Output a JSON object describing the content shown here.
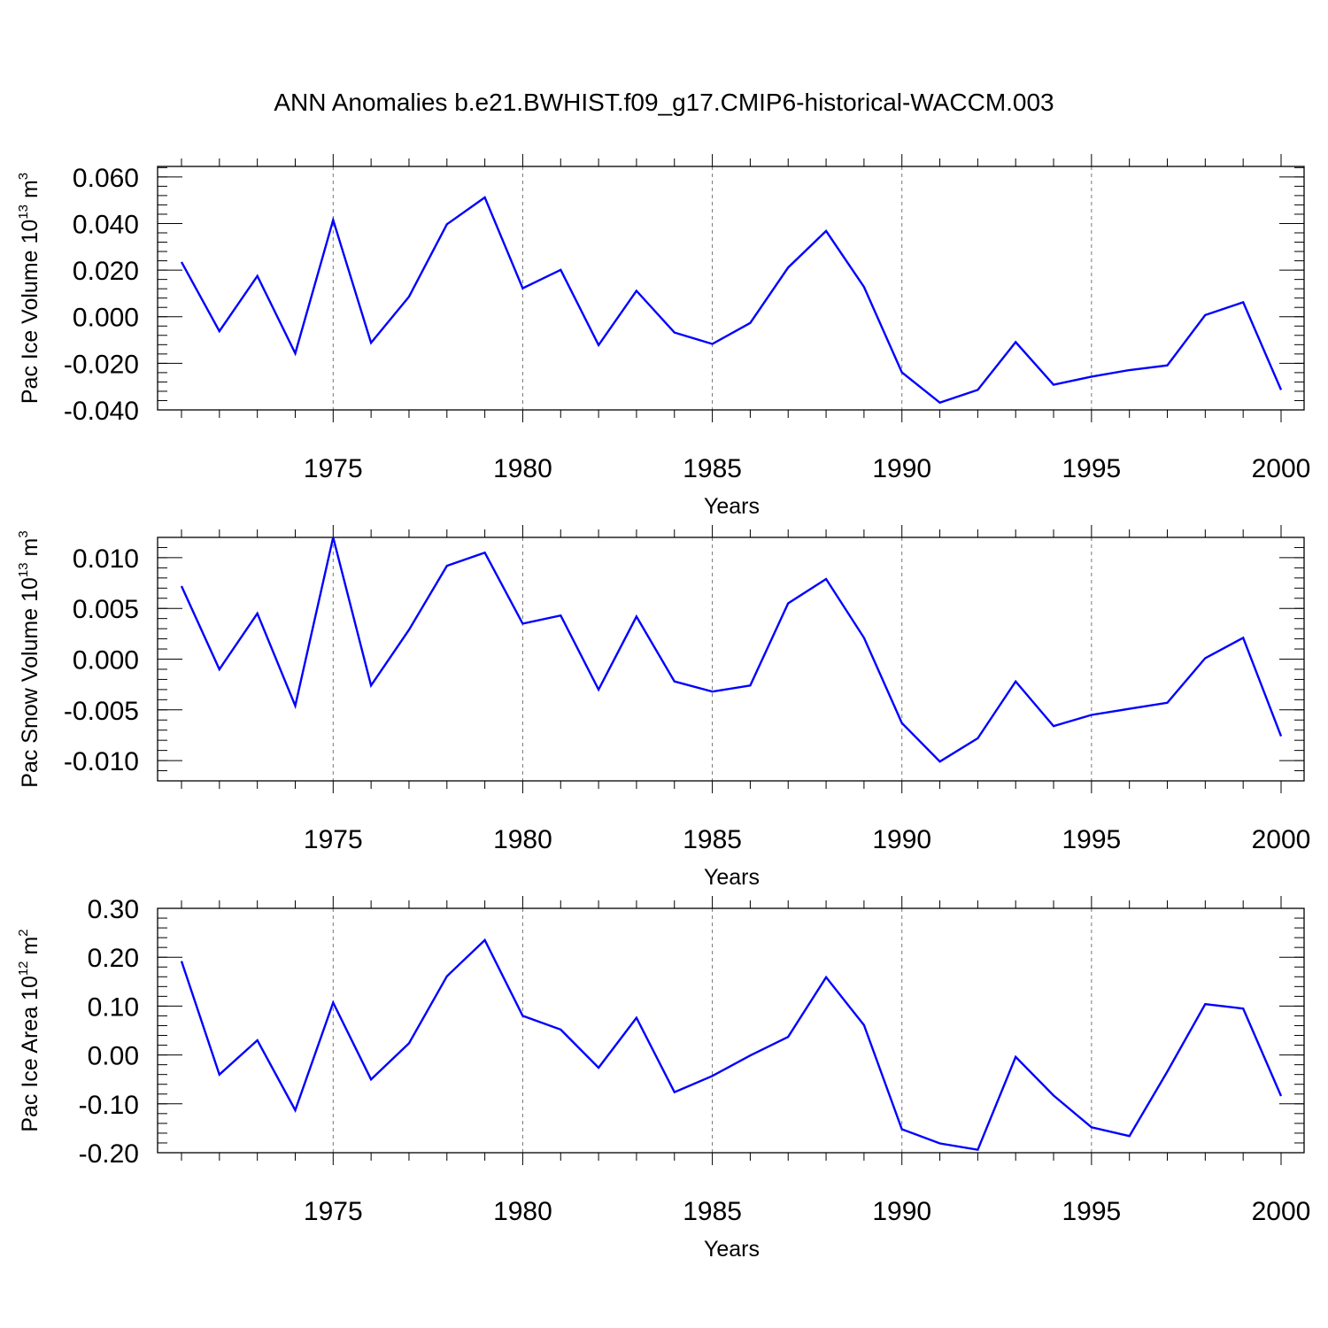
{
  "title": "ANN Anomalies b.e21.BWHIST.f09_g17.CMIP6-historical-WACCM.003",
  "line_color": "#0000ff",
  "chart_data": [
    {
      "type": "line",
      "title": "",
      "xlabel": "Years",
      "ylabel": "Pac Ice Volume 10",
      "ylabel_exp": "13",
      "ylabel_unit": "m",
      "ylabel_unit_exp": "3",
      "xlim": [
        1971,
        2000
      ],
      "ylim": [
        -0.04,
        0.0645
      ],
      "yticks": [
        {
          "value": 0.06,
          "label": "0.060"
        },
        {
          "value": 0.04,
          "label": "0.040"
        },
        {
          "value": 0.02,
          "label": "0.020"
        },
        {
          "value": 0.0,
          "label": "0.000"
        },
        {
          "value": -0.02,
          "label": "-0.020"
        },
        {
          "value": -0.04,
          "label": "-0.040"
        }
      ],
      "xticks": [
        {
          "value": 1975,
          "label": "1975"
        },
        {
          "value": 1980,
          "label": "1980"
        },
        {
          "value": 1985,
          "label": "1985"
        },
        {
          "value": 1990,
          "label": "1990"
        },
        {
          "value": 1995,
          "label": "1995"
        },
        {
          "value": 2000,
          "label": "2000"
        }
      ],
      "grid": "dashed vertical lines at major x ticks",
      "series": [
        {
          "x": [
            1971,
            1972,
            1973,
            1974,
            1975,
            1976,
            1977,
            1978,
            1979,
            1980,
            1981,
            1982,
            1983,
            1984,
            1985,
            1986,
            1987,
            1988,
            1989,
            1990,
            1991,
            1992,
            1993,
            1994,
            1995,
            1996,
            1997,
            1998,
            1999,
            2000
          ],
          "values": [
            0.0235,
            -0.0062,
            0.0175,
            -0.0157,
            0.0415,
            -0.0112,
            0.0086,
            0.0397,
            0.0512,
            0.0122,
            0.0201,
            -0.0122,
            0.0111,
            -0.0068,
            -0.0117,
            -0.0027,
            0.0211,
            0.0368,
            0.0128,
            -0.0239,
            -0.0369,
            -0.0314,
            -0.0109,
            -0.0292,
            -0.0257,
            -0.0229,
            -0.0209,
            0.0007,
            0.0062,
            -0.0314
          ]
        }
      ]
    },
    {
      "type": "line",
      "title": "",
      "xlabel": "Years",
      "ylabel": "Pac Snow Volume 10",
      "ylabel_exp": "13",
      "ylabel_unit": "m",
      "ylabel_unit_exp": "3",
      "xlim": [
        1971,
        2000
      ],
      "ylim": [
        -0.012,
        0.012
      ],
      "yticks": [
        {
          "value": 0.01,
          "label": "0.010"
        },
        {
          "value": 0.005,
          "label": "0.005"
        },
        {
          "value": 0.0,
          "label": "0.000"
        },
        {
          "value": -0.005,
          "label": "-0.005"
        },
        {
          "value": -0.01,
          "label": "-0.010"
        }
      ],
      "xticks": [
        {
          "value": 1975,
          "label": "1975"
        },
        {
          "value": 1980,
          "label": "1980"
        },
        {
          "value": 1985,
          "label": "1985"
        },
        {
          "value": 1990,
          "label": "1990"
        },
        {
          "value": 1995,
          "label": "1995"
        },
        {
          "value": 2000,
          "label": "2000"
        }
      ],
      "grid": "dashed vertical lines at major x ticks",
      "series": [
        {
          "x": [
            1971,
            1972,
            1973,
            1974,
            1975,
            1976,
            1977,
            1978,
            1979,
            1980,
            1981,
            1982,
            1983,
            1984,
            1985,
            1986,
            1987,
            1988,
            1989,
            1990,
            1991,
            1992,
            1993,
            1994,
            1995,
            1996,
            1997,
            1998,
            1999,
            2000
          ],
          "values": [
            0.0072,
            -0.001,
            0.0045,
            -0.0046,
            0.012,
            -0.0026,
            0.0029,
            0.0092,
            0.0105,
            0.0035,
            0.0043,
            -0.003,
            0.0042,
            -0.0022,
            -0.0032,
            -0.0026,
            0.0055,
            0.0079,
            0.0021,
            -0.0063,
            -0.0101,
            -0.0078,
            -0.0022,
            -0.0066,
            -0.0055,
            -0.0049,
            -0.0043,
            0.0001,
            0.0021,
            -0.0076
          ]
        }
      ]
    },
    {
      "type": "line",
      "title": "",
      "xlabel": "Years",
      "ylabel": "Pac Ice Area 10",
      "ylabel_exp": "12",
      "ylabel_unit": "m",
      "ylabel_unit_exp": "2",
      "xlim": [
        1971,
        2000
      ],
      "ylim": [
        -0.2,
        0.3
      ],
      "yticks": [
        {
          "value": 0.3,
          "label": "0.30"
        },
        {
          "value": 0.2,
          "label": "0.20"
        },
        {
          "value": 0.1,
          "label": "0.10"
        },
        {
          "value": 0.0,
          "label": "0.00"
        },
        {
          "value": -0.1,
          "label": "-0.10"
        },
        {
          "value": -0.2,
          "label": "-0.20"
        }
      ],
      "xticks": [
        {
          "value": 1975,
          "label": "1975"
        },
        {
          "value": 1980,
          "label": "1980"
        },
        {
          "value": 1985,
          "label": "1985"
        },
        {
          "value": 1990,
          "label": "1990"
        },
        {
          "value": 1995,
          "label": "1995"
        },
        {
          "value": 2000,
          "label": "2000"
        }
      ],
      "grid": "dashed vertical lines at major x ticks",
      "series": [
        {
          "x": [
            1971,
            1972,
            1973,
            1974,
            1975,
            1976,
            1977,
            1978,
            1979,
            1980,
            1981,
            1982,
            1983,
            1984,
            1985,
            1986,
            1987,
            1988,
            1989,
            1990,
            1991,
            1992,
            1993,
            1994,
            1995,
            1996,
            1997,
            1998,
            1999,
            2000
          ],
          "values": [
            0.192,
            -0.04,
            0.03,
            -0.113,
            0.107,
            -0.05,
            0.024,
            0.161,
            0.235,
            0.08,
            0.052,
            -0.026,
            0.076,
            -0.076,
            -0.043,
            -0.001,
            0.037,
            0.159,
            0.061,
            -0.152,
            -0.181,
            -0.194,
            -0.004,
            -0.083,
            -0.148,
            -0.166,
            -0.034,
            0.104,
            0.095,
            -0.084
          ]
        }
      ]
    }
  ]
}
